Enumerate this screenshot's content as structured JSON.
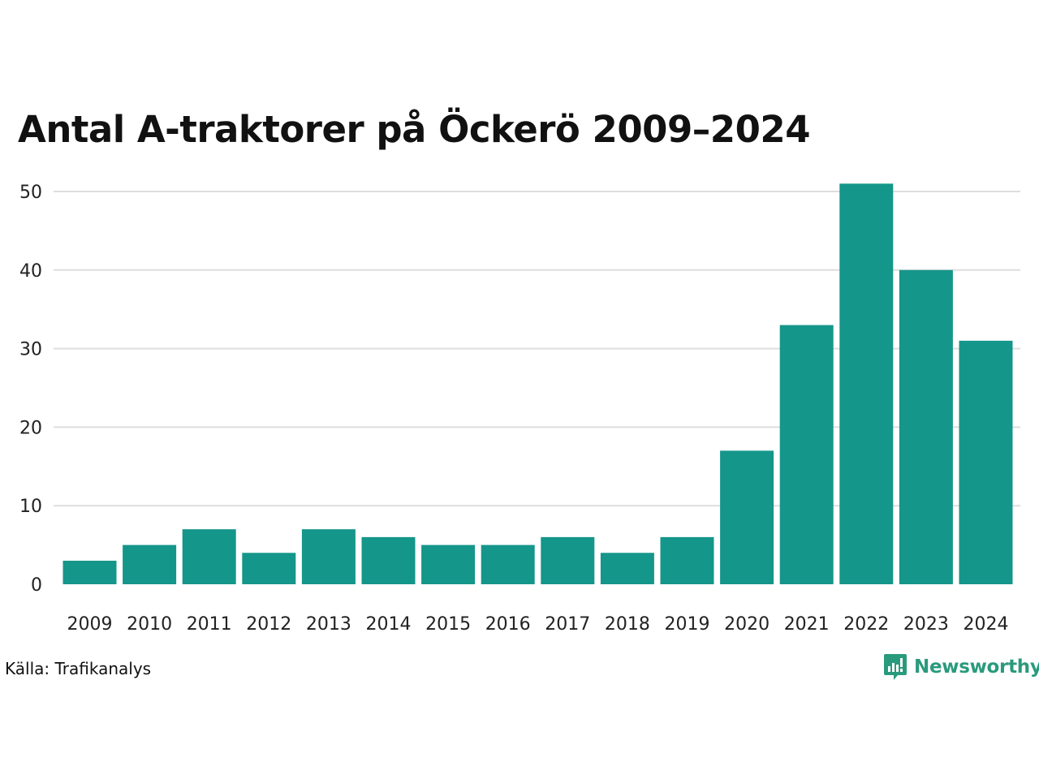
{
  "title": "Antal A-traktorer på Öckerö 2009–2024",
  "source": "Källa: Trafikanalys",
  "brand": {
    "name": "Newsworthy",
    "icon": "newsworthy-logo-icon",
    "color": "#2a9a7d"
  },
  "chart_data": {
    "type": "bar",
    "title": "Antal A-traktorer på Öckerö 2009–2024",
    "xlabel": "",
    "ylabel": "",
    "categories": [
      "2009",
      "2010",
      "2011",
      "2012",
      "2013",
      "2014",
      "2015",
      "2016",
      "2017",
      "2018",
      "2019",
      "2020",
      "2021",
      "2022",
      "2023",
      "2024"
    ],
    "values": [
      3,
      5,
      7,
      4,
      7,
      6,
      5,
      5,
      6,
      4,
      6,
      17,
      33,
      51,
      40,
      31
    ],
    "ylim": [
      0,
      50
    ],
    "yticks": [
      0,
      10,
      20,
      30,
      40,
      50
    ],
    "grid": true,
    "legend": "none",
    "bar_color": "#15968a",
    "grid_color": "#dedede"
  }
}
